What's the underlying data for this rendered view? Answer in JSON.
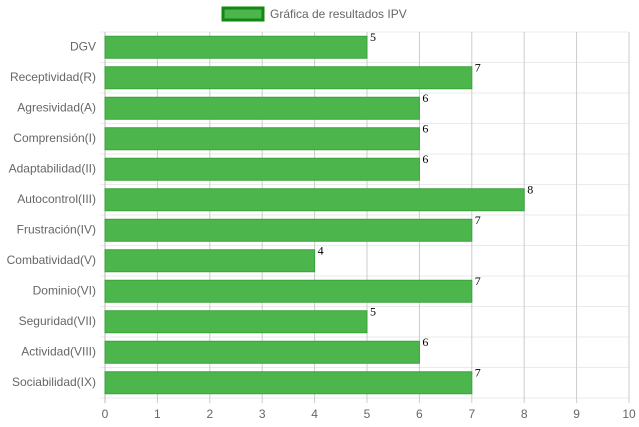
{
  "chart_data": {
    "type": "bar",
    "orientation": "horizontal",
    "categories": [
      "DGV",
      "Receptividad(R)",
      "Agresividad(A)",
      "Comprensión(I)",
      "Adaptabilidad(II)",
      "Autocontrol(III)",
      "Frustración(IV)",
      "Combatividad(V)",
      "Dominio(VI)",
      "Seguridad(VII)",
      "Actividad(VIII)",
      "Sociabilidad(IX)"
    ],
    "series": [
      {
        "name": "Gráfica de resultados IPV",
        "color": "#4cb64c",
        "values": [
          5,
          7,
          6,
          6,
          6,
          8,
          7,
          4,
          7,
          5,
          6,
          7
        ]
      }
    ],
    "xlim": [
      0,
      10
    ],
    "xticks": [
      0,
      1,
      2,
      3,
      4,
      5,
      6,
      7,
      8,
      9,
      10
    ],
    "grid": true,
    "legend": "top"
  }
}
